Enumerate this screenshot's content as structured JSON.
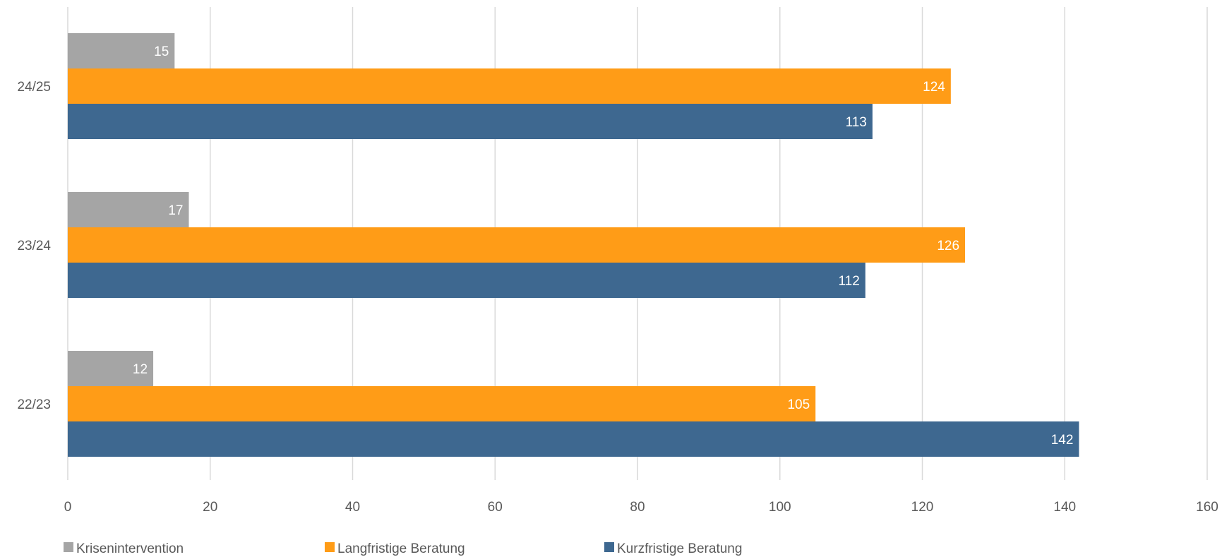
{
  "chart_data": {
    "type": "bar",
    "orientation": "horizontal",
    "categories": [
      "22/23",
      "23/24",
      "24/25"
    ],
    "series": [
      {
        "name": "Krisenintervention",
        "values": [
          12,
          17,
          15
        ],
        "color": "#a5a5a5"
      },
      {
        "name": "Langfristige Beratung",
        "values": [
          105,
          126,
          124
        ],
        "color": "#ff9c17"
      },
      {
        "name": "Kurzfristige Beratung",
        "values": [
          142,
          112,
          113
        ],
        "color": "#3e6890"
      }
    ],
    "xlim": [
      0,
      160
    ],
    "xticks": [
      0,
      20,
      40,
      60,
      80,
      100,
      120,
      140,
      160
    ],
    "grid": true,
    "legend_position": "bottom",
    "data_labels": true,
    "title": "",
    "xlabel": "",
    "ylabel": ""
  }
}
